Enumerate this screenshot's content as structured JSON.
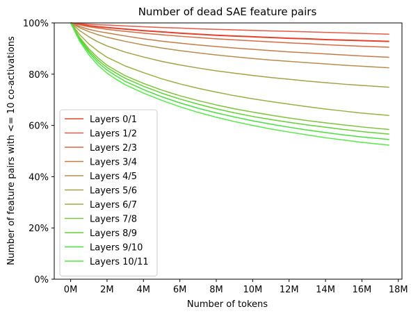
{
  "chart_data": {
    "type": "line",
    "title": "Number of dead SAE feature pairs",
    "xlabel": "Number of tokens",
    "ylabel": "Number of feature pairs with <= 10 co-activations",
    "xlim": [
      -0.9,
      18.2
    ],
    "ylim": [
      0,
      100
    ],
    "x_ticks": [
      0,
      2,
      4,
      6,
      8,
      10,
      12,
      14,
      16,
      18
    ],
    "x_tick_labels": [
      "0M",
      "2M",
      "4M",
      "6M",
      "8M",
      "10M",
      "12M",
      "14M",
      "16M",
      "18M"
    ],
    "y_ticks": [
      0,
      20,
      40,
      60,
      80,
      100
    ],
    "y_tick_labels": [
      "0%",
      "20%",
      "40%",
      "60%",
      "80%",
      "100%"
    ],
    "x": [
      0,
      0.5,
      1,
      1.5,
      2,
      2.5,
      3,
      4,
      5,
      6,
      7,
      8,
      9,
      10,
      11,
      12,
      13,
      14,
      15,
      16,
      17.5
    ],
    "legend_position": "center-left",
    "series": [
      {
        "name": "Layers 0/1",
        "color": "#e4412b",
        "values": [
          100,
          99.4,
          98.9,
          98.5,
          98.2,
          97.9,
          97.6,
          97.0,
          96.5,
          96.0,
          95.6,
          95.2,
          94.9,
          94.6,
          94.3,
          94.0,
          93.8,
          93.5,
          93.3,
          93.1,
          92.8
        ]
      },
      {
        "name": "Layers 1/2",
        "color": "#e55a48",
        "values": [
          100,
          99.7,
          99.5,
          99.3,
          99.2,
          99.0,
          98.8,
          98.5,
          98.2,
          98.0,
          97.7,
          97.5,
          97.3,
          97.1,
          96.9,
          96.7,
          96.5,
          96.3,
          96.1,
          95.9,
          95.6
        ]
      },
      {
        "name": "Layers 2/3",
        "color": "#d86a41",
        "values": [
          100,
          99.2,
          98.5,
          98.0,
          97.5,
          97.1,
          96.7,
          96.0,
          95.4,
          94.8,
          94.3,
          93.8,
          93.4,
          93.0,
          92.6,
          92.2,
          91.9,
          91.5,
          91.2,
          90.9,
          90.5
        ]
      },
      {
        "name": "Layers 3/4",
        "color": "#c67b47",
        "values": [
          100,
          98.6,
          97.5,
          96.7,
          96.1,
          95.5,
          94.9,
          93.8,
          92.9,
          92.1,
          91.4,
          90.8,
          90.2,
          89.7,
          89.2,
          88.7,
          88.3,
          87.9,
          87.5,
          87.1,
          86.6
        ]
      },
      {
        "name": "Layers 4/5",
        "color": "#b78d4e",
        "values": [
          100,
          98.1,
          96.6,
          95.4,
          94.4,
          93.6,
          92.8,
          91.4,
          90.2,
          89.2,
          88.3,
          87.5,
          86.8,
          86.1,
          85.5,
          85.0,
          84.5,
          84.0,
          83.5,
          83.1,
          82.5
        ]
      },
      {
        "name": "Layers 5/6",
        "color": "#a6a049",
        "values": [
          100,
          97.0,
          94.6,
          92.6,
          91.0,
          89.8,
          88.6,
          86.7,
          85.0,
          83.6,
          82.4,
          81.3,
          80.4,
          79.5,
          78.7,
          78.0,
          77.3,
          76.7,
          76.1,
          75.6,
          74.9
        ]
      },
      {
        "name": "Layers 6/7",
        "color": "#97b045",
        "values": [
          100,
          95.4,
          91.8,
          89.0,
          86.6,
          84.9,
          83.2,
          80.6,
          78.2,
          76.2,
          74.5,
          73.0,
          71.6,
          70.4,
          69.3,
          68.3,
          67.3,
          66.4,
          65.6,
          64.8,
          63.9
        ]
      },
      {
        "name": "Layers 7/8",
        "color": "#7fc23c",
        "values": [
          100,
          94.3,
          89.9,
          86.4,
          83.5,
          81.4,
          79.4,
          76.4,
          73.8,
          71.6,
          69.7,
          68.0,
          66.5,
          65.2,
          64.0,
          62.9,
          61.9,
          61.0,
          60.2,
          59.4,
          58.4
        ]
      },
      {
        "name": "Layers 8/9",
        "color": "#63d136",
        "values": [
          100,
          93.8,
          89.2,
          85.5,
          82.6,
          80.4,
          78.4,
          75.3,
          72.6,
          70.3,
          68.3,
          66.5,
          64.9,
          63.5,
          62.3,
          61.2,
          60.2,
          59.3,
          58.4,
          57.6,
          56.6
        ]
      },
      {
        "name": "Layers 9/10",
        "color": "#49de3f",
        "values": [
          100,
          93.4,
          88.5,
          84.6,
          81.6,
          79.3,
          77.2,
          74.0,
          71.2,
          68.8,
          66.7,
          64.9,
          63.3,
          61.8,
          60.5,
          59.3,
          58.2,
          57.2,
          56.3,
          55.5,
          54.5
        ]
      },
      {
        "name": "Layers 10/11",
        "color": "#57e849",
        "values": [
          100,
          92.8,
          87.6,
          83.5,
          80.4,
          78.0,
          75.9,
          72.6,
          69.8,
          67.3,
          65.1,
          63.2,
          61.5,
          60.0,
          58.6,
          57.4,
          56.3,
          55.2,
          54.3,
          53.4,
          52.3
        ]
      }
    ]
  }
}
